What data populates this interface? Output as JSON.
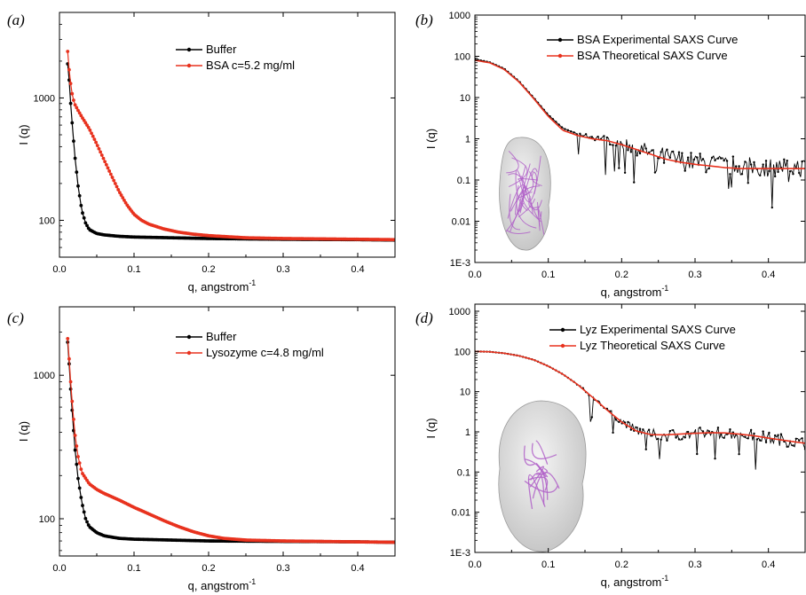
{
  "chart_data": [
    {
      "panel": "(a)",
      "type": "scatter",
      "xlabel": "q, angstrom",
      "xlabel_sup": "-1",
      "ylabel": "I (q)",
      "xlim": [
        0.0,
        0.45
      ],
      "ylim": [
        50,
        5000
      ],
      "yscale": "log",
      "xticks": [
        0.0,
        0.1,
        0.2,
        0.3,
        0.4
      ],
      "xtick_labels": [
        "0.0",
        "0.1",
        "0.2",
        "0.3",
        "0.4"
      ],
      "yticks": [
        100,
        1000
      ],
      "ytick_labels": [
        "100",
        "1000"
      ],
      "legend_position": "top-center",
      "series": [
        {
          "name": "Buffer",
          "color": "#000000",
          "x": [
            0.011,
            0.013,
            0.015,
            0.018,
            0.021,
            0.025,
            0.03,
            0.035,
            0.04,
            0.05,
            0.06,
            0.08,
            0.1,
            0.15,
            0.2,
            0.3,
            0.4,
            0.45
          ],
          "y": [
            1900,
            1400,
            900,
            520,
            320,
            190,
            120,
            95,
            84,
            78,
            76,
            74,
            73,
            72,
            71,
            70,
            69.5,
            69
          ]
        },
        {
          "name": "BSA c=5.2 mg/ml",
          "color": "#e8321e",
          "x": [
            0.011,
            0.013,
            0.016,
            0.02,
            0.025,
            0.03,
            0.04,
            0.05,
            0.06,
            0.07,
            0.08,
            0.09,
            0.1,
            0.11,
            0.12,
            0.14,
            0.16,
            0.18,
            0.2,
            0.25,
            0.3,
            0.35,
            0.4,
            0.45
          ],
          "y": [
            2400,
            1700,
            1150,
            900,
            790,
            700,
            560,
            420,
            310,
            230,
            172,
            135,
            112,
            100,
            93,
            85,
            80,
            77,
            75,
            72,
            71,
            70.5,
            70,
            69.5
          ]
        }
      ]
    },
    {
      "panel": "(b)",
      "type": "scatter",
      "xlabel": "q, angstrom",
      "xlabel_sup": "-1",
      "ylabel": "I (q)",
      "xlim": [
        0.0,
        0.45
      ],
      "ylim": [
        0.001,
        1000
      ],
      "yscale": "log",
      "xticks": [
        0.0,
        0.1,
        0.2,
        0.3,
        0.4
      ],
      "xtick_labels": [
        "0.0",
        "0.1",
        "0.2",
        "0.3",
        "0.4"
      ],
      "yticks": [
        0.001,
        0.01,
        0.1,
        1,
        10,
        100,
        1000
      ],
      "ytick_labels": [
        "1E-3",
        "0.01",
        "0.1",
        "1",
        "10",
        "100",
        "1000"
      ],
      "legend_position": "top-right",
      "inset": "molecular-surface-model",
      "series": [
        {
          "name": "BSA Experimental SAXS Curve",
          "color": "#000000",
          "x": [
            0.0,
            0.02,
            0.04,
            0.06,
            0.08,
            0.1,
            0.12,
            0.14,
            0.16,
            0.18,
            0.2,
            0.22,
            0.24,
            0.26,
            0.28,
            0.3,
            0.32,
            0.34,
            0.36,
            0.38,
            0.4,
            0.42,
            0.44,
            0.45
          ],
          "y": [
            85,
            72,
            50,
            25,
            10,
            3.8,
            1.8,
            1.3,
            1.1,
            0.95,
            0.78,
            0.6,
            0.45,
            0.35,
            0.3,
            0.27,
            0.25,
            0.23,
            0.22,
            0.21,
            0.2,
            0.21,
            0.2,
            0.2
          ]
        },
        {
          "name": "BSA Theoretical SAXS Curve",
          "color": "#e8321e",
          "x": [
            0.0,
            0.02,
            0.04,
            0.06,
            0.08,
            0.1,
            0.12,
            0.14,
            0.16,
            0.18,
            0.2,
            0.22,
            0.24,
            0.26,
            0.28,
            0.3,
            0.32,
            0.34,
            0.36,
            0.38,
            0.4,
            0.42,
            0.44,
            0.45
          ],
          "y": [
            80,
            70,
            48,
            24,
            9.5,
            3.5,
            1.6,
            1.2,
            1.0,
            0.9,
            0.72,
            0.55,
            0.42,
            0.32,
            0.27,
            0.24,
            0.22,
            0.2,
            0.19,
            0.19,
            0.19,
            0.19,
            0.19,
            0.19
          ]
        }
      ]
    },
    {
      "panel": "(c)",
      "type": "scatter",
      "xlabel": "q, angstrom",
      "xlabel_sup": "-1",
      "ylabel": "I (q)",
      "xlim": [
        0.0,
        0.45
      ],
      "ylim": [
        55,
        3000
      ],
      "yscale": "log",
      "xticks": [
        0.0,
        0.1,
        0.2,
        0.3,
        0.4
      ],
      "xtick_labels": [
        "0.0",
        "0.1",
        "0.2",
        "0.3",
        "0.4"
      ],
      "yticks": [
        100,
        1000
      ],
      "ytick_labels": [
        "100",
        "1000"
      ],
      "legend_position": "top-center",
      "series": [
        {
          "name": "Buffer",
          "color": "#000000",
          "x": [
            0.011,
            0.013,
            0.015,
            0.018,
            0.021,
            0.025,
            0.03,
            0.035,
            0.04,
            0.05,
            0.06,
            0.08,
            0.1,
            0.15,
            0.2,
            0.3,
            0.4,
            0.45
          ],
          "y": [
            1700,
            1200,
            800,
            480,
            300,
            190,
            130,
            100,
            88,
            80,
            76,
            73,
            72,
            71,
            70,
            69.5,
            69,
            68.5
          ]
        },
        {
          "name": "Lysozyme c=4.8 mg/ml",
          "color": "#e8321e",
          "x": [
            0.011,
            0.013,
            0.015,
            0.018,
            0.021,
            0.025,
            0.03,
            0.04,
            0.05,
            0.06,
            0.08,
            0.1,
            0.12,
            0.14,
            0.16,
            0.18,
            0.2,
            0.22,
            0.25,
            0.3,
            0.35,
            0.4,
            0.45
          ],
          "y": [
            1800,
            1300,
            900,
            560,
            380,
            270,
            210,
            175,
            160,
            150,
            135,
            120,
            108,
            97,
            88,
            81,
            76,
            73,
            71,
            70,
            69.5,
            69,
            68.5
          ]
        }
      ]
    },
    {
      "panel": "(d)",
      "type": "scatter",
      "xlabel": "q, angstrom",
      "xlabel_sup": "-1",
      "ylabel": "I (q)",
      "xlim": [
        0.0,
        0.45
      ],
      "ylim": [
        0.001,
        1500
      ],
      "yscale": "log",
      "xticks": [
        0.0,
        0.1,
        0.2,
        0.3,
        0.4
      ],
      "xtick_labels": [
        "0.0",
        "0.1",
        "0.2",
        "0.3",
        "0.4"
      ],
      "yticks": [
        0.001,
        0.01,
        0.1,
        1,
        10,
        100,
        1000
      ],
      "ytick_labels": [
        "1E-3",
        "0.01",
        "0.1",
        "1",
        "10",
        "100",
        "1000"
      ],
      "legend_position": "top-right",
      "inset": "molecular-surface-model",
      "series": [
        {
          "name": "Lyz Experimental SAXS Curve",
          "color": "#000000",
          "x": [
            0.0,
            0.02,
            0.04,
            0.06,
            0.08,
            0.1,
            0.12,
            0.14,
            0.16,
            0.18,
            0.2,
            0.22,
            0.24,
            0.26,
            0.28,
            0.3,
            0.32,
            0.34,
            0.36,
            0.38,
            0.4,
            0.42,
            0.44,
            0.45
          ],
          "y": [
            100,
            98,
            90,
            78,
            62,
            43,
            27,
            15,
            7.5,
            3.6,
            1.8,
            1.1,
            0.85,
            0.82,
            0.85,
            0.9,
            0.95,
            0.95,
            0.9,
            0.8,
            0.7,
            0.62,
            0.55,
            0.5
          ]
        },
        {
          "name": "Lyz Theoretical SAXS Curve",
          "color": "#e8321e",
          "x": [
            0.0,
            0.02,
            0.04,
            0.06,
            0.08,
            0.1,
            0.12,
            0.14,
            0.16,
            0.18,
            0.2,
            0.22,
            0.24,
            0.26,
            0.28,
            0.3,
            0.32,
            0.34,
            0.36,
            0.38,
            0.4,
            0.42,
            0.44,
            0.45
          ],
          "y": [
            100,
            98,
            90,
            78,
            62,
            43,
            27,
            15,
            7.3,
            3.5,
            1.75,
            1.05,
            0.85,
            0.84,
            0.88,
            0.92,
            0.95,
            0.94,
            0.88,
            0.8,
            0.7,
            0.62,
            0.55,
            0.52
          ]
        }
      ]
    }
  ]
}
